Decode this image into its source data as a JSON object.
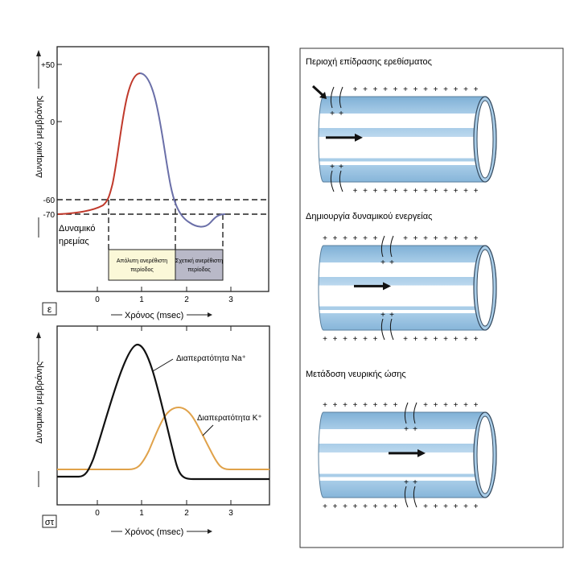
{
  "panel_e": {
    "label": "ε",
    "y_axis_label": "Δυναμικό μεμβράνης",
    "x_axis_label": "Χρόνος (msec)",
    "y_ticks": [
      "+50",
      "0",
      "-60",
      "-70"
    ],
    "x_ticks": [
      "0",
      "1",
      "2",
      "3"
    ],
    "resting_label_1": "Δυναμικό",
    "resting_label_2": "ηρεμίας",
    "absolute_refractory_1": "Απόλυτη ανερέθιστη",
    "absolute_refractory_2": "περίοδος",
    "relative_refractory_1": "Σχετική ανερέθιστη",
    "relative_refractory_2": "περίοδος",
    "colors": {
      "depolarization": "#c0392b",
      "repolarization": "#6a6fa8",
      "absolute_box": "#fbf8d8",
      "relative_box": "#b9b9c8"
    }
  },
  "panel_st": {
    "label": "στ",
    "y_axis_label": "Δυναμικό μεμβράνης",
    "x_axis_label": "Χρόνος (msec)",
    "x_ticks": [
      "0",
      "1",
      "2",
      "3"
    ],
    "na_label": "Διαπερατότητα Na⁺",
    "k_label": "Διαπερατότητα K⁺",
    "colors": {
      "na": "#111111",
      "k": "#e0a24a"
    }
  },
  "right_panel": {
    "steps": [
      {
        "title": "Περιοχή επίδρασης ερεθίσματος"
      },
      {
        "title": "Δημιουργία δυναμικού ενεργείας"
      },
      {
        "title": "Μετάδοση νευρικής ώσης"
      }
    ],
    "plus_sign": "+",
    "colors": {
      "axon": "#a9cde8",
      "axon_edge": "#5a7f9c"
    }
  }
}
